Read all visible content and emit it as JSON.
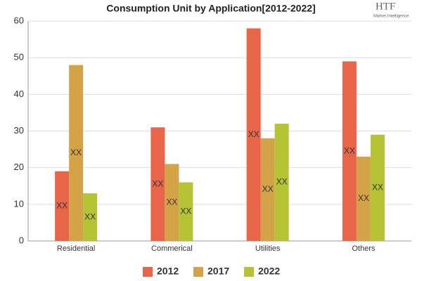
{
  "chart_data": {
    "type": "bar",
    "title": "Consumption Unit by  Application[2012-2022]",
    "logo": {
      "mark": "HTF",
      "tagline": "Market Intelligence"
    },
    "categories": [
      "Residential",
      "Commerical",
      "Utilities",
      "Others"
    ],
    "series": [
      {
        "name": "2012",
        "color": "#e8654a",
        "values": [
          19,
          31,
          58,
          49
        ],
        "value_labels": [
          "XX",
          "XX",
          "XX",
          "XX"
        ]
      },
      {
        "name": "2017",
        "color": "#d4a347",
        "values": [
          48,
          21,
          28,
          23
        ],
        "value_labels": [
          "XX",
          "XX",
          "XX",
          "XX"
        ]
      },
      {
        "name": "2022",
        "color": "#b5c334",
        "values": [
          13,
          16,
          32,
          29
        ],
        "value_labels": [
          "XX",
          "XX",
          "XX",
          "XX"
        ]
      }
    ],
    "ylim": [
      0,
      60
    ],
    "yticks": [
      0,
      10,
      20,
      30,
      40,
      50,
      60
    ],
    "grid": true,
    "legend": "bottom"
  }
}
